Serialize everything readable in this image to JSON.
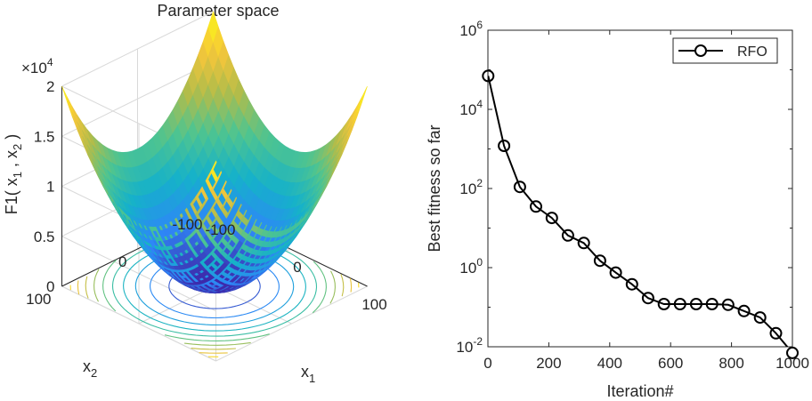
{
  "chart_data": [
    {
      "type": "surface",
      "title": "Parameter space",
      "zlabel": {
        "base": "F1(  x",
        "sub1": "1",
        "mid": " ,  x",
        "sub2": "2",
        "end": " )"
      },
      "xlabel": {
        "base": "x",
        "sub": "1"
      },
      "ylabel": {
        "base": "x",
        "sub": "2"
      },
      "z_exponent": {
        "base": "×10",
        "exp": "4"
      },
      "z_ticks": [
        "0",
        "0.5",
        "1",
        "1.5",
        "2"
      ],
      "x_ticks": [
        "-100",
        "0",
        "100"
      ],
      "y_ticks": [
        "100",
        "0",
        "-100"
      ],
      "function": "x1^2 + x2^2",
      "xlim": [
        -100,
        100
      ],
      "ylim": [
        -100,
        100
      ],
      "zlim": [
        0,
        20000
      ],
      "colormap": [
        "#3e26a8",
        "#2e87f7",
        "#15b1ca",
        "#4dc491",
        "#b2bc4a",
        "#f6c63a",
        "#f9fb15"
      ],
      "contour_levels": 10
    },
    {
      "type": "line",
      "y_scale": "log",
      "xlabel": "Iteration#",
      "ylabel": "Best fitness so far",
      "xlim": [
        0,
        1000
      ],
      "ylim": [
        0.01,
        1000000
      ],
      "x_ticks": [
        "0",
        "200",
        "400",
        "600",
        "800",
        "1000"
      ],
      "y_ticks": [
        {
          "base": "10",
          "exp": "-2",
          "value": 0.01
        },
        {
          "base": "10",
          "exp": "0",
          "value": 1
        },
        {
          "base": "10",
          "exp": "2",
          "value": 100
        },
        {
          "base": "10",
          "exp": "4",
          "value": 10000
        },
        {
          "base": "10",
          "exp": "6",
          "value": 1000000
        }
      ],
      "series": [
        {
          "name": "RFO",
          "color": "#000000",
          "marker": "circle",
          "x": [
            1,
            53,
            105,
            158,
            210,
            263,
            315,
            368,
            420,
            473,
            526,
            578,
            631,
            684,
            736,
            789,
            841,
            894,
            946,
            1000
          ],
          "y": [
            70000,
            1200,
            110,
            35,
            18,
            6.5,
            4.2,
            1.5,
            0.75,
            0.38,
            0.17,
            0.12,
            0.12,
            0.12,
            0.12,
            0.115,
            0.08,
            0.055,
            0.022,
            0.007
          ]
        }
      ],
      "legend_position": "top-right"
    }
  ]
}
